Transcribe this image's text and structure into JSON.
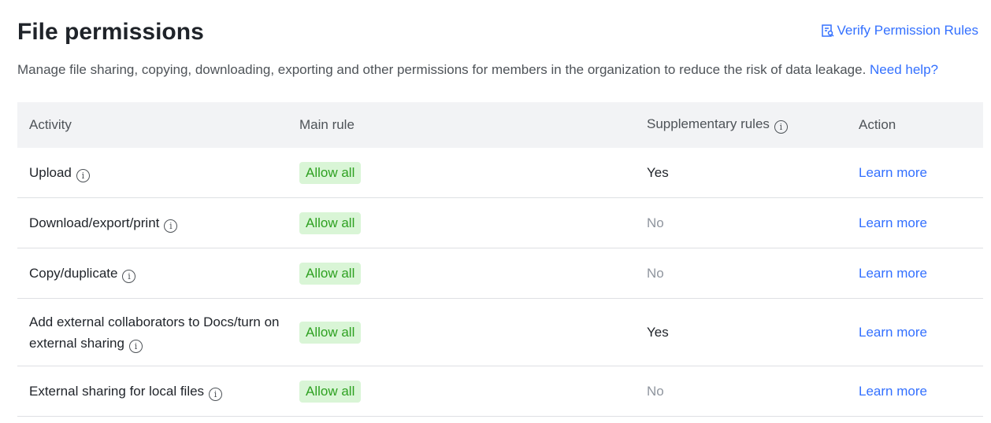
{
  "title": "File permissions",
  "verify_label": "Verify Permission Rules",
  "description": "Manage file sharing, copying, downloading, exporting and other permissions for members in the organization to reduce the risk of data leakage.",
  "help_link": "Need help?",
  "columns": [
    "Activity",
    "Main rule",
    "Supplementary rules",
    "Action"
  ],
  "rows": [
    {
      "activity": "Upload",
      "main": "Allow all",
      "supp": "Yes",
      "action": "Learn more"
    },
    {
      "activity": "Download/export/print",
      "main": "Allow all",
      "supp": "No",
      "action": "Learn more"
    },
    {
      "activity": "Copy/duplicate",
      "main": "Allow all",
      "supp": "No",
      "action": "Learn more"
    },
    {
      "activity": "Add external collaborators to Docs/turn on external sharing",
      "main": "Allow all",
      "supp": "Yes",
      "action": "Learn more"
    },
    {
      "activity": "External sharing for local files",
      "main": "Allow all",
      "supp": "No",
      "action": "Learn more"
    }
  ]
}
